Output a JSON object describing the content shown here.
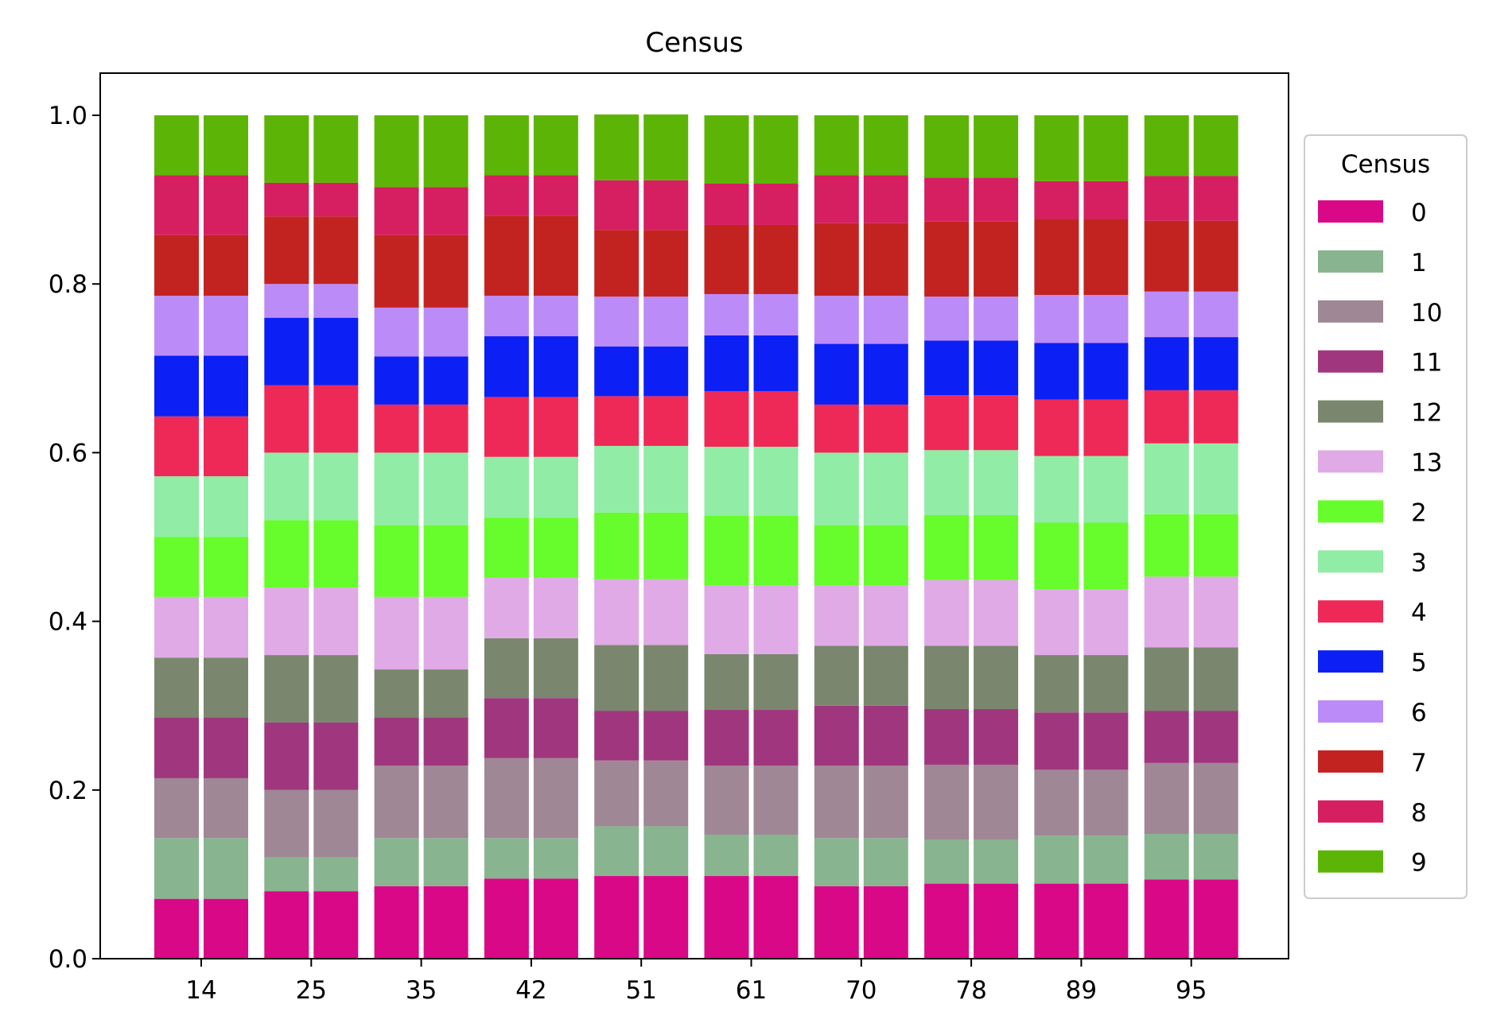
{
  "chart_data": {
    "type": "bar",
    "stacked": true,
    "normalized": true,
    "title": "Census",
    "xlabel": "",
    "ylabel": "",
    "ylim": [
      0,
      1.05
    ],
    "yticks": [
      "0.0",
      "0.2",
      "0.4",
      "0.6",
      "0.8",
      "1.0"
    ],
    "ytick_values": [
      0,
      0.2,
      0.4,
      0.6,
      0.8,
      1.0
    ],
    "categories": [
      "14",
      "25",
      "35",
      "42",
      "51",
      "61",
      "70",
      "78",
      "89",
      "95"
    ],
    "bars_per_category": 2,
    "grid": false,
    "legend": {
      "title": "Census",
      "placement": "right-outside"
    },
    "series": [
      {
        "name": "0",
        "color": "#d90886",
        "values": [
          0.071,
          0.08,
          0.086,
          0.095,
          0.098,
          0.098,
          0.086,
          0.089,
          0.089,
          0.094
        ]
      },
      {
        "name": "1",
        "color": "#88b490",
        "values": [
          0.072,
          0.04,
          0.057,
          0.048,
          0.059,
          0.049,
          0.057,
          0.052,
          0.057,
          0.054
        ]
      },
      {
        "name": "10",
        "color": "#9f8795",
        "values": [
          0.071,
          0.08,
          0.086,
          0.095,
          0.078,
          0.082,
          0.086,
          0.089,
          0.078,
          0.084
        ]
      },
      {
        "name": "11",
        "color": "#a0377e",
        "values": [
          0.072,
          0.08,
          0.057,
          0.071,
          0.059,
          0.066,
          0.071,
          0.066,
          0.068,
          0.062
        ]
      },
      {
        "name": "12",
        "color": "#7a876e",
        "values": [
          0.071,
          0.08,
          0.057,
          0.071,
          0.078,
          0.066,
          0.071,
          0.075,
          0.068,
          0.075
        ]
      },
      {
        "name": "13",
        "color": "#dfaae6",
        "values": [
          0.072,
          0.08,
          0.086,
          0.072,
          0.078,
          0.082,
          0.072,
          0.078,
          0.078,
          0.084
        ]
      },
      {
        "name": "2",
        "color": "#67fc2b",
        "values": [
          0.071,
          0.08,
          0.085,
          0.071,
          0.079,
          0.082,
          0.071,
          0.077,
          0.079,
          0.074
        ]
      },
      {
        "name": "3",
        "color": "#91eca5",
        "values": [
          0.072,
          0.08,
          0.086,
          0.072,
          0.079,
          0.082,
          0.086,
          0.077,
          0.079,
          0.084
        ]
      },
      {
        "name": "4",
        "color": "#ef2957",
        "values": [
          0.071,
          0.08,
          0.057,
          0.071,
          0.059,
          0.066,
          0.057,
          0.065,
          0.067,
          0.063
        ]
      },
      {
        "name": "5",
        "color": "#0c20f5",
        "values": [
          0.072,
          0.08,
          0.057,
          0.072,
          0.059,
          0.066,
          0.072,
          0.065,
          0.067,
          0.063
        ]
      },
      {
        "name": "6",
        "color": "#bb8cf8",
        "values": [
          0.071,
          0.04,
          0.058,
          0.048,
          0.059,
          0.049,
          0.057,
          0.052,
          0.057,
          0.054
        ]
      },
      {
        "name": "7",
        "color": "#c22321",
        "values": [
          0.072,
          0.08,
          0.086,
          0.095,
          0.079,
          0.082,
          0.086,
          0.089,
          0.09,
          0.084
        ]
      },
      {
        "name": "8",
        "color": "#d61f60",
        "values": [
          0.071,
          0.04,
          0.057,
          0.048,
          0.059,
          0.049,
          0.057,
          0.052,
          0.045,
          0.053
        ]
      },
      {
        "name": "9",
        "color": "#5cb506",
        "values": [
          0.071,
          0.08,
          0.085,
          0.071,
          0.078,
          0.081,
          0.071,
          0.074,
          0.078,
          0.072
        ]
      }
    ]
  }
}
